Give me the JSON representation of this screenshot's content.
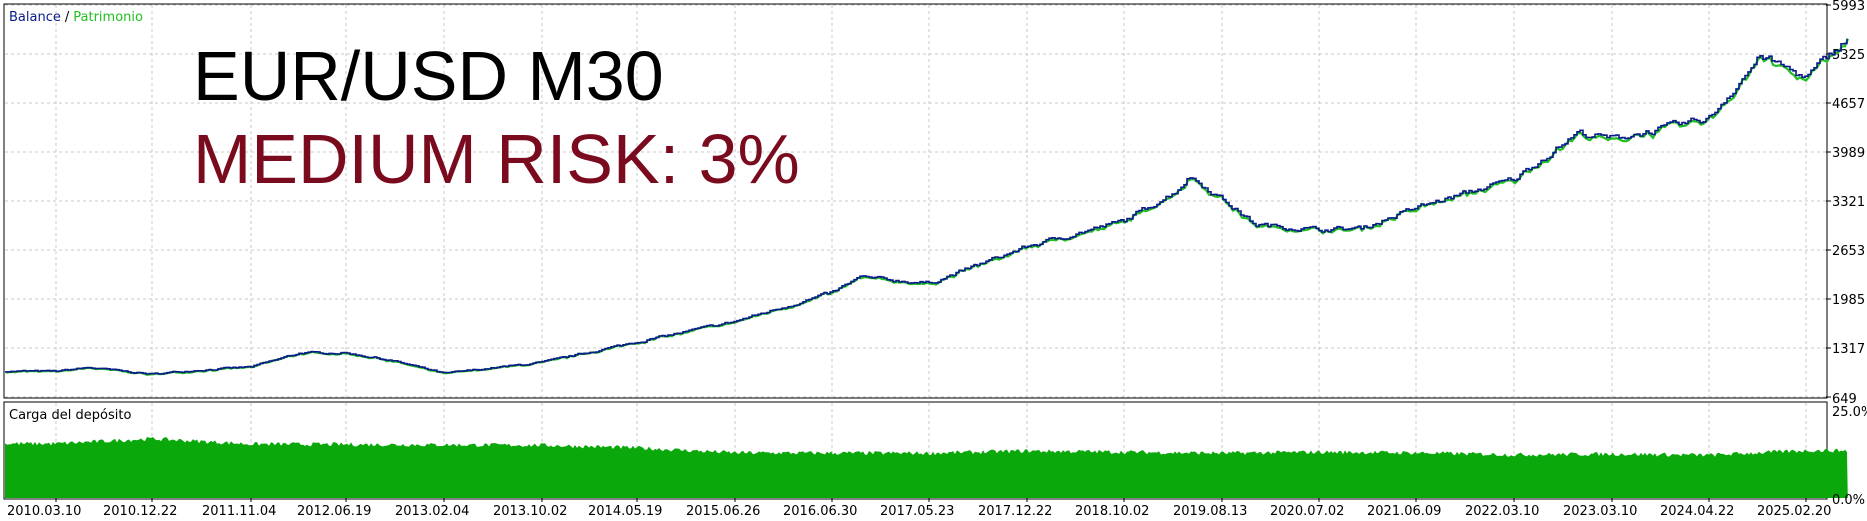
{
  "colors": {
    "balance": "#0a1a8a",
    "equity": "#1fc01f",
    "deposit_fill": "#0aa80a",
    "grid": "#c8c8c8",
    "title": "#000000",
    "subtitle": "#7a0a1e"
  },
  "overlay": {
    "title": "EUR/USD M30",
    "subtitle": "MEDIUM RISK: 3%"
  },
  "chart_data": [
    {
      "type": "line",
      "legend": {
        "placement": "top-left",
        "items": [
          "Balance",
          "/",
          "Patrimonio"
        ]
      },
      "series": [
        {
          "name": "Balance",
          "color": "#0a1a8a"
        },
        {
          "name": "Patrimonio",
          "color": "#1fc01f"
        }
      ],
      "x": [
        "2010.03.10",
        "2010.12.22",
        "2011.11.04",
        "2012.06.19",
        "2013.02.04",
        "2013.10.02",
        "2014.05.19",
        "2015.06.26",
        "2016.06.30",
        "2017.05.23",
        "2017.12.22",
        "2018.10.02",
        "2019.08.13",
        "2020.07.02",
        "2021.06.09",
        "2022.03.10",
        "2023.03.10",
        "2024.04.22",
        "2025.02.20"
      ],
      "points": [
        {
          "x": "2010.03.10",
          "y": 1000
        },
        {
          "x": "2010.06.15",
          "y": 1050
        },
        {
          "x": "2010.12.22",
          "y": 960
        },
        {
          "x": "2011.05.01",
          "y": 1010
        },
        {
          "x": "2011.11.04",
          "y": 1060
        },
        {
          "x": "2012.03.01",
          "y": 1250
        },
        {
          "x": "2012.06.19",
          "y": 1250
        },
        {
          "x": "2012.10.01",
          "y": 1150
        },
        {
          "x": "2013.02.04",
          "y": 970
        },
        {
          "x": "2013.10.02",
          "y": 1120
        },
        {
          "x": "2014.05.19",
          "y": 1400
        },
        {
          "x": "2015.06.26",
          "y": 1680
        },
        {
          "x": "2016.06.30",
          "y": 2070
        },
        {
          "x": "2016.10.01",
          "y": 2280
        },
        {
          "x": "2017.05.23",
          "y": 2200
        },
        {
          "x": "2017.12.22",
          "y": 2700
        },
        {
          "x": "2018.10.02",
          "y": 3050
        },
        {
          "x": "2019.03.15",
          "y": 3450
        },
        {
          "x": "2019.05.01",
          "y": 3660
        },
        {
          "x": "2019.08.13",
          "y": 3350
        },
        {
          "x": "2019.12.01",
          "y": 3000
        },
        {
          "x": "2020.07.02",
          "y": 2930
        },
        {
          "x": "2020.12.01",
          "y": 2950
        },
        {
          "x": "2021.06.09",
          "y": 3230
        },
        {
          "x": "2022.03.10",
          "y": 3620
        },
        {
          "x": "2022.08.01",
          "y": 4000
        },
        {
          "x": "2022.11.01",
          "y": 4250
        },
        {
          "x": "2023.03.10",
          "y": 4170
        },
        {
          "x": "2023.10.01",
          "y": 4300
        },
        {
          "x": "2024.04.22",
          "y": 4450
        },
        {
          "x": "2024.10.01",
          "y": 5300
        },
        {
          "x": "2025.02.20",
          "y": 5000
        },
        {
          "x": "2025.07.01",
          "y": 5550
        }
      ],
      "yticks": [
        649,
        1317,
        1985,
        2653,
        3321,
        3989,
        4657,
        5325,
        5993
      ],
      "ylim": [
        649,
        5993
      ],
      "grid": true
    },
    {
      "type": "area",
      "title": "Carga del depósito",
      "yticks": [
        "0.0%",
        "25.0%"
      ],
      "ylim": [
        0,
        25
      ],
      "points": [
        {
          "x": "2010.03.10",
          "y": 14.3
        },
        {
          "x": "2010.12.22",
          "y": 15.6
        },
        {
          "x": "2011.11.04",
          "y": 14.2
        },
        {
          "x": "2013.10.02",
          "y": 13.9
        },
        {
          "x": "2014.05.19",
          "y": 13.2
        },
        {
          "x": "2015.06.26",
          "y": 11.9
        },
        {
          "x": "2017.05.23",
          "y": 11.8
        },
        {
          "x": "2017.12.22",
          "y": 12.4
        },
        {
          "x": "2019.08.13",
          "y": 11.8
        },
        {
          "x": "2020.07.02",
          "y": 12.1
        },
        {
          "x": "2021.06.09",
          "y": 11.9
        },
        {
          "x": "2022.03.10",
          "y": 11.4
        },
        {
          "x": "2023.03.10",
          "y": 11.6
        },
        {
          "x": "2024.04.22",
          "y": 11.3
        },
        {
          "x": "2025.02.20",
          "y": 12.5
        }
      ]
    }
  ]
}
